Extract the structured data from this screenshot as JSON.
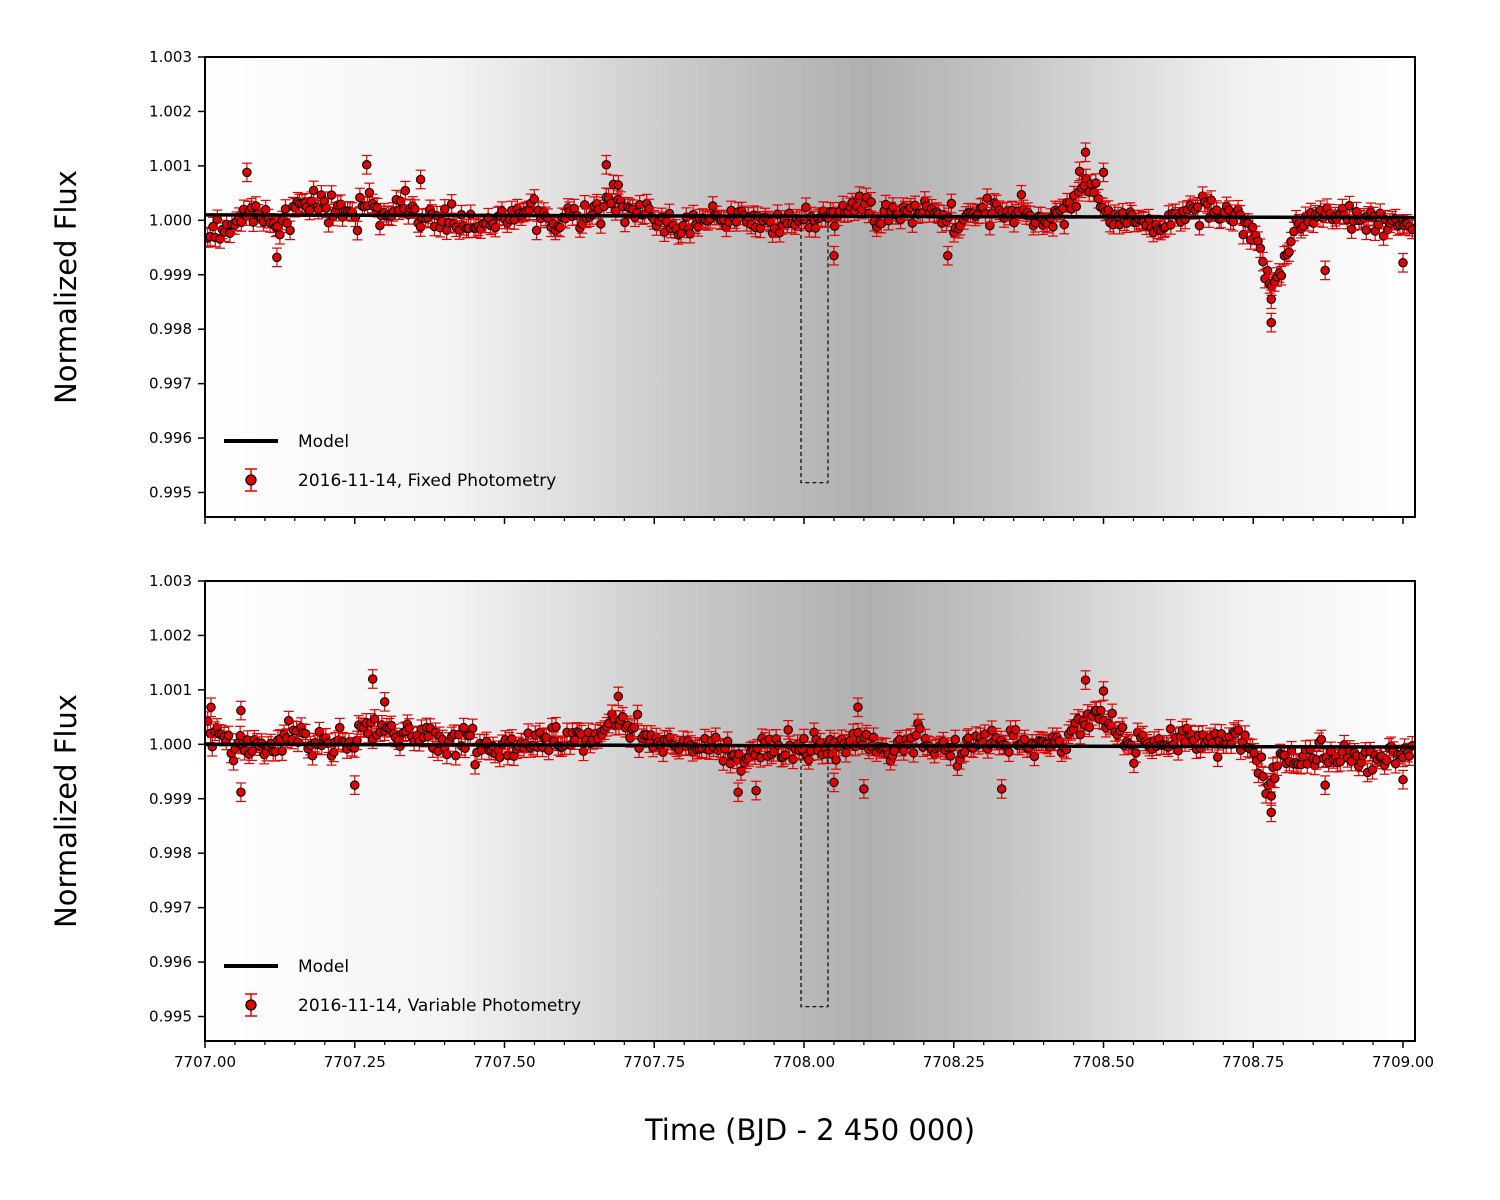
{
  "figure": {
    "xlabel": "Time (BJD - 2 450 000)",
    "colors": {
      "point_fill": "#e00000",
      "error_bar": "#e00000",
      "point_edge": "#000000",
      "model": "#000000",
      "background_light": "#ffffff",
      "background_dark": "#b0b0b0"
    }
  },
  "chart_data": [
    {
      "type": "scatter",
      "title": "",
      "ylabel": "Normalized Flux",
      "xlim": [
        7707.0,
        7709.02
      ],
      "ylim": [
        0.99455,
        1.003
      ],
      "x_ticks": [
        "7707.00",
        "7707.25",
        "7707.50",
        "7707.75",
        "7708.00",
        "7708.25",
        "7708.50",
        "7708.75",
        "7709.00"
      ],
      "y_ticks": [
        "0.995",
        "0.996",
        "0.997",
        "0.998",
        "0.999",
        "1.000",
        "1.001",
        "1.002",
        "1.003"
      ],
      "show_x_tick_labels": false,
      "grid": false,
      "legend_position": "lower-left",
      "legend": [
        {
          "label": "Model",
          "kind": "line"
        },
        {
          "label": "2016-11-14, Fixed Photometry",
          "kind": "errorbar"
        }
      ],
      "model": {
        "x": [
          7707.0,
          7709.02
        ],
        "y": [
          1.0001,
          1.00005
        ]
      },
      "expected_transit_box": {
        "x": [
          7707.995,
          7708.04
        ],
        "y": [
          0.99518,
          1.0
        ]
      },
      "background_shading_peak_x": 7708.05,
      "error_bar_size": 0.00017,
      "series": [
        {
          "name": "2016-11-14, Fixed Photometry",
          "anchors": {
            "x": [
              7707.01,
              7707.05,
              7707.07,
              7707.1,
              7707.12,
              7707.15,
              7707.2,
              7707.25,
              7707.27,
              7707.3,
              7707.33,
              7707.36,
              7707.4,
              7707.45,
              7707.5,
              7707.55,
              7707.6,
              7707.65,
              7707.68,
              7707.7,
              7707.75,
              7707.8,
              7707.85,
              7707.9,
              7707.95,
              7708.0,
              7708.05,
              7708.1,
              7708.15,
              7708.2,
              7708.25,
              7708.3,
              7708.35,
              7708.4,
              7708.45,
              7708.47,
              7708.5,
              7708.55,
              7708.6,
              7708.65,
              7708.7,
              7708.74,
              7708.76,
              7708.78,
              7708.8,
              7708.82,
              7708.86,
              7708.9,
              7708.95,
              7709.0,
              7709.02
            ],
            "y": [
              0.99975,
              0.99995,
              1.0002,
              1.0001,
              0.99975,
              1.0002,
              1.0003,
              1.0001,
              1.0003,
              1.0001,
              1.0002,
              1.0001,
              1.0,
              0.9999,
              1.0001,
              1.0001,
              1.0,
              1.0001,
              1.0005,
              1.0002,
              1.0,
              0.99985,
              1.0001,
              1.0,
              0.99995,
              1.0,
              1.0001,
              1.0002,
              1.0001,
              1.0002,
              1.0,
              1.0002,
              1.0002,
              0.99995,
              1.0003,
              1.0007,
              1.0002,
              1.0,
              0.9999,
              1.0002,
              1.0001,
              1.0,
              0.99945,
              0.9989,
              0.9992,
              0.99985,
              1.0001,
              1.0001,
              0.99995,
              0.9999,
              0.9998
            ]
          },
          "points_count": 500,
          "scatter_sigma": 0.00022,
          "outliers": [
            {
              "x": 7707.07,
              "y": 1.00088
            },
            {
              "x": 7707.27,
              "y": 1.00102
            },
            {
              "x": 7707.36,
              "y": 1.00075
            },
            {
              "x": 7707.67,
              "y": 1.00102
            },
            {
              "x": 7707.69,
              "y": 1.00065
            },
            {
              "x": 7707.12,
              "y": 0.99932
            },
            {
              "x": 7708.05,
              "y": 0.99935
            },
            {
              "x": 7708.24,
              "y": 0.99935
            },
            {
              "x": 7708.47,
              "y": 1.00125
            },
            {
              "x": 7708.46,
              "y": 1.0009
            },
            {
              "x": 7708.5,
              "y": 1.00088
            },
            {
              "x": 7708.78,
              "y": 0.99812
            },
            {
              "x": 7708.78,
              "y": 0.99855
            },
            {
              "x": 7708.87,
              "y": 0.99908
            },
            {
              "x": 7709.0,
              "y": 0.99922
            }
          ]
        }
      ]
    },
    {
      "type": "scatter",
      "title": "",
      "ylabel": "Normalized Flux",
      "xlim": [
        7707.0,
        7709.02
      ],
      "ylim": [
        0.99455,
        1.003
      ],
      "x_ticks": [
        "7707.00",
        "7707.25",
        "7707.50",
        "7707.75",
        "7708.00",
        "7708.25",
        "7708.50",
        "7708.75",
        "7709.00"
      ],
      "y_ticks": [
        "0.995",
        "0.996",
        "0.997",
        "0.998",
        "0.999",
        "1.000",
        "1.001",
        "1.002",
        "1.003"
      ],
      "show_x_tick_labels": true,
      "grid": false,
      "legend_position": "lower-left",
      "legend": [
        {
          "label": "Model",
          "kind": "line"
        },
        {
          "label": "2016-11-14, Variable Photometry",
          "kind": "errorbar"
        }
      ],
      "model": {
        "x": [
          7707.0,
          7709.02
        ],
        "y": [
          1.0,
          0.99995
        ]
      },
      "expected_transit_box": {
        "x": [
          7707.995,
          7708.04
        ],
        "y": [
          0.99518,
          1.0
        ]
      },
      "background_shading_peak_x": 7708.05,
      "error_bar_size": 0.00017,
      "series": [
        {
          "name": "2016-11-14, Variable Photometry",
          "anchors": {
            "x": [
              7707.01,
              7707.05,
              7707.1,
              7707.15,
              7707.2,
              7707.25,
              7707.28,
              7707.3,
              7707.35,
              7707.4,
              7707.45,
              7707.5,
              7707.55,
              7707.6,
              7707.65,
              7707.69,
              7707.72,
              7707.75,
              7707.8,
              7707.85,
              7707.9,
              7707.95,
              7708.0,
              7708.05,
              7708.1,
              7708.15,
              7708.2,
              7708.25,
              7708.3,
              7708.35,
              7708.4,
              7708.45,
              7708.48,
              7708.5,
              7708.55,
              7708.6,
              7708.65,
              7708.7,
              7708.74,
              7708.77,
              7708.8,
              7708.85,
              7708.9,
              7708.95,
              7709.0,
              7709.02
            ],
            "y": [
              1.0002,
              1.0,
              0.99995,
              1.0002,
              1.0001,
              1.0,
              1.0004,
              1.0002,
              1.0001,
              1.0001,
              1.0,
              0.99995,
              1.0,
              1.0001,
              1.0001,
              1.0004,
              1.0002,
              1.0,
              0.9999,
              0.99995,
              0.9998,
              0.99995,
              0.99995,
              0.99995,
              1.0,
              0.9999,
              1.0001,
              0.99985,
              1.0001,
              1.0001,
              0.99995,
              1.0002,
              1.0006,
              1.0004,
              1.0,
              1.0,
              1.0001,
              1.0001,
              1.0001,
              0.9994,
              0.99975,
              0.9998,
              0.9998,
              0.99975,
              0.9998,
              0.99985
            ]
          },
          "points_count": 520,
          "scatter_sigma": 0.00024,
          "outliers": [
            {
              "x": 7707.01,
              "y": 1.00068
            },
            {
              "x": 7707.06,
              "y": 0.99912
            },
            {
              "x": 7707.06,
              "y": 1.00062
            },
            {
              "x": 7707.28,
              "y": 1.0012
            },
            {
              "x": 7707.3,
              "y": 1.00078
            },
            {
              "x": 7707.25,
              "y": 0.99925
            },
            {
              "x": 7707.69,
              "y": 1.00088
            },
            {
              "x": 7707.89,
              "y": 0.99912
            },
            {
              "x": 7707.92,
              "y": 0.99915
            },
            {
              "x": 7708.05,
              "y": 0.9993
            },
            {
              "x": 7708.09,
              "y": 1.00068
            },
            {
              "x": 7708.1,
              "y": 0.99918
            },
            {
              "x": 7708.33,
              "y": 0.99918
            },
            {
              "x": 7708.47,
              "y": 1.00118
            },
            {
              "x": 7708.5,
              "y": 1.00098
            },
            {
              "x": 7708.78,
              "y": 0.99875
            },
            {
              "x": 7708.78,
              "y": 0.99905
            },
            {
              "x": 7708.87,
              "y": 0.99925
            },
            {
              "x": 7709.0,
              "y": 0.99935
            }
          ]
        }
      ]
    }
  ]
}
